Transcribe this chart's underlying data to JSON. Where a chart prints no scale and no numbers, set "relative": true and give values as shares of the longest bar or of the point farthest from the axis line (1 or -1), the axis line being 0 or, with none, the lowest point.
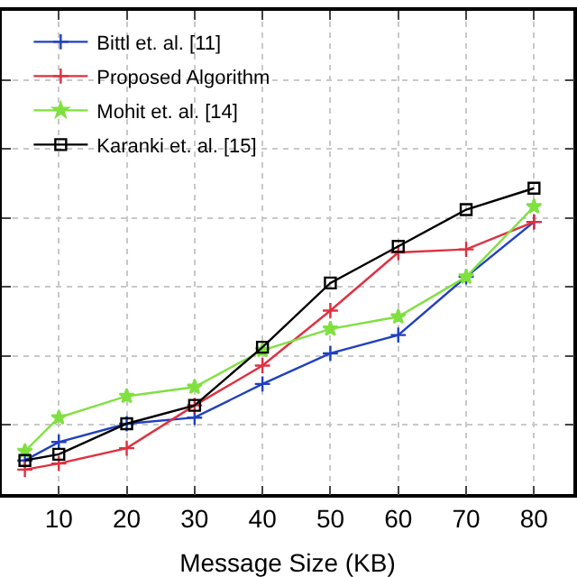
{
  "chart_data": {
    "type": "line",
    "xlabel": "Message Size (KB)",
    "relative": true,
    "x": [
      5,
      10,
      20,
      30,
      40,
      50,
      60,
      70,
      80
    ],
    "xlim": [
      1.6,
      85.8
    ],
    "xticks": [
      10,
      20,
      30,
      40,
      50,
      60,
      70,
      80
    ],
    "series": [
      {
        "name": "Bittl et. al. [11]",
        "color": "#2040c0",
        "marker": "cross",
        "values": [
          0.11,
          0.17,
          0.23,
          0.25,
          0.36,
          0.46,
          0.52,
          0.71,
          0.89
        ]
      },
      {
        "name": "Proposed Algorithm",
        "color": "#e03040",
        "marker": "cross",
        "values": [
          0.08,
          0.1,
          0.15,
          0.29,
          0.42,
          0.6,
          0.79,
          0.8,
          0.89
        ]
      },
      {
        "name": "Mohit et. al. [14]",
        "color": "#80e040",
        "marker": "star",
        "values": [
          0.14,
          0.25,
          0.32,
          0.35,
          0.47,
          0.54,
          0.58,
          0.71,
          0.94
        ]
      },
      {
        "name": "Karanki et. al. [15]",
        "color": "#000000",
        "marker": "square",
        "values": [
          0.11,
          0.13,
          0.23,
          0.29,
          0.48,
          0.69,
          0.81,
          0.93,
          1
        ]
      }
    ],
    "grid": true,
    "legend": "top",
    "tick_labels": "x",
    "line_style": "solid"
  }
}
